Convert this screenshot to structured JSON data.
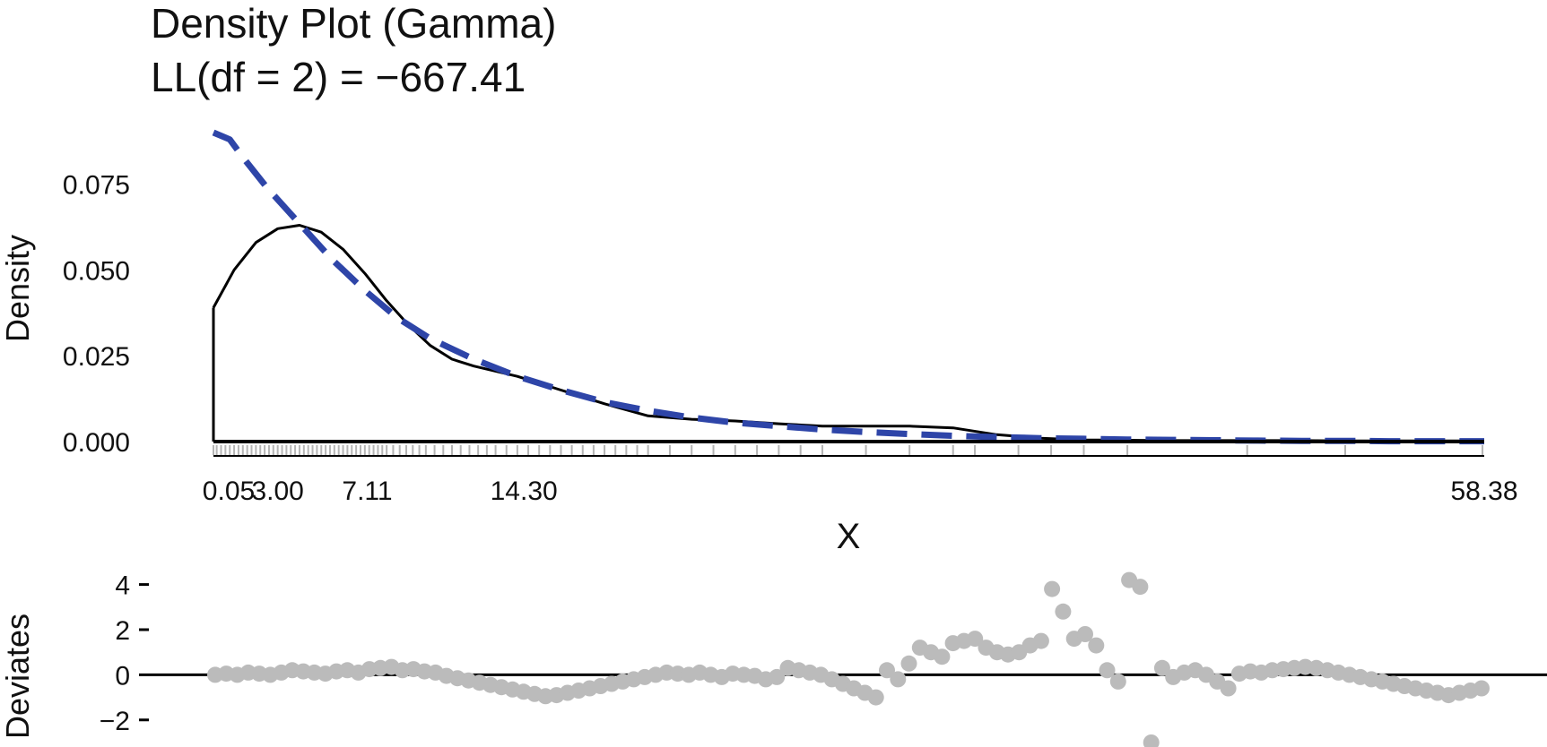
{
  "chart_data": [
    {
      "type": "line",
      "title": "Density Plot (Gamma)",
      "subtitle": "LL(df = 2) = −667.41",
      "xlabel": "X",
      "ylabel": "Density",
      "xlim": [
        0.05,
        58.38
      ],
      "ylim": [
        0,
        0.09
      ],
      "x_tick_labels": [
        "0.05",
        "3.00",
        "7.11",
        "14.30",
        "58.38"
      ],
      "y_tick_labels": [
        "0.000",
        "0.025",
        "0.050",
        "0.075"
      ],
      "grid": false,
      "series": [
        {
          "style": "solid",
          "color": "#000000",
          "x": [
            0.05,
            1,
            2,
            3,
            4,
            5,
            6,
            7,
            8,
            9,
            10,
            11,
            12,
            14,
            16,
            18,
            20,
            22,
            24,
            26,
            28,
            30,
            32,
            34,
            36,
            38,
            40,
            42,
            44,
            46,
            48,
            50,
            52,
            54,
            56,
            58.38
          ],
          "y": [
            0.039,
            0.05,
            0.058,
            0.062,
            0.063,
            0.061,
            0.056,
            0.049,
            0.041,
            0.034,
            0.028,
            0.024,
            0.022,
            0.019,
            0.015,
            0.011,
            0.0075,
            0.0065,
            0.006,
            0.0052,
            0.0045,
            0.0045,
            0.0045,
            0.004,
            0.002,
            0.001,
            0.0005,
            0.0004,
            0.0003,
            0.0003,
            0.0003,
            0.0003,
            0.0002,
            0.0002,
            0.0002,
            0.0002
          ]
        },
        {
          "style": "dashed",
          "color": "#2e45a8",
          "x": [
            0.05,
            0.8,
            1.5,
            2.5,
            3.5,
            4.5,
            5.5,
            7,
            8.5,
            10,
            12,
            14,
            16,
            18,
            20,
            22,
            24,
            26,
            28,
            30,
            32,
            34,
            36,
            38,
            40,
            42,
            44,
            46,
            48,
            50,
            52,
            54,
            56,
            58.38
          ],
          "y": [
            0.09,
            0.088,
            0.082,
            0.074,
            0.067,
            0.06,
            0.053,
            0.044,
            0.036,
            0.03,
            0.024,
            0.019,
            0.015,
            0.0115,
            0.009,
            0.007,
            0.0055,
            0.0045,
            0.0035,
            0.0028,
            0.0022,
            0.0017,
            0.0013,
            0.001,
            0.0008,
            0.0006,
            0.0005,
            0.0004,
            0.0003,
            0.0002,
            0.0002,
            0.0001,
            0.0001,
            0.0001
          ]
        }
      ],
      "rug": [
        0.05,
        0.2,
        0.4,
        0.6,
        0.8,
        1.0,
        1.2,
        1.4,
        1.6,
        1.8,
        2.0,
        2.2,
        2.4,
        2.6,
        2.8,
        3.0,
        3.2,
        3.4,
        3.6,
        3.8,
        4.0,
        4.2,
        4.4,
        4.6,
        4.8,
        5.0,
        5.2,
        5.4,
        5.6,
        5.8,
        6.0,
        6.2,
        6.4,
        6.6,
        6.8,
        7.0,
        7.2,
        7.4,
        7.6,
        7.8,
        8.0,
        8.3,
        8.6,
        8.9,
        9.2,
        9.5,
        9.8,
        10.2,
        10.6,
        11.0,
        11.4,
        11.8,
        12.2,
        12.6,
        13.0,
        13.5,
        14.0,
        14.5,
        15.0,
        15.5,
        16.0,
        16.5,
        17.0,
        17.5,
        18.0,
        18.5,
        19.0,
        19.5,
        20.0,
        21.0,
        22.0,
        23.0,
        24.0,
        25.0,
        26.0,
        27.0,
        28.0,
        30.0,
        32.0,
        34.0,
        35.0,
        37.0,
        38.5,
        40.0,
        42.0,
        47.5,
        52.0,
        58.3
      ]
    },
    {
      "type": "scatter",
      "xlabel": "",
      "ylabel": "Deviates",
      "ylim": [
        -3.2,
        4.5
      ],
      "y_tick_labels": [
        "4",
        "2",
        "0",
        "−2"
      ],
      "reference_line": 0,
      "point_color": "#bbbbbb",
      "x": [
        0,
        1,
        2,
        3,
        4,
        5,
        6,
        7,
        8,
        9,
        10,
        11,
        12,
        13,
        14,
        15,
        16,
        17,
        18,
        19,
        20,
        21,
        22,
        23,
        24,
        25,
        26,
        27,
        28,
        29,
        30,
        31,
        32,
        33,
        34,
        35,
        36,
        37,
        38,
        39,
        40,
        41,
        42,
        43,
        44,
        45,
        46,
        47,
        48,
        49,
        50,
        51,
        52,
        53,
        54,
        55,
        56,
        57,
        58,
        59,
        60,
        61,
        62,
        63,
        64,
        65,
        66,
        67,
        68,
        69,
        70,
        71,
        72,
        73,
        74,
        75,
        76,
        77,
        78,
        79,
        80,
        81,
        82,
        83,
        84,
        85,
        86,
        87,
        88,
        89,
        90,
        91,
        92,
        93,
        94,
        95,
        96,
        97,
        98,
        99,
        100,
        101,
        102,
        103,
        104,
        105,
        106,
        107,
        108,
        109,
        110,
        111,
        112,
        113,
        114,
        115
      ],
      "y": [
        0.0,
        0.05,
        0.0,
        0.1,
        0.05,
        0.0,
        0.1,
        0.2,
        0.15,
        0.1,
        0.05,
        0.15,
        0.2,
        0.1,
        0.25,
        0.3,
        0.35,
        0.2,
        0.25,
        0.15,
        0.1,
        -0.05,
        -0.15,
        -0.25,
        -0.35,
        -0.45,
        -0.55,
        -0.65,
        -0.75,
        -0.85,
        -0.95,
        -0.9,
        -0.8,
        -0.7,
        -0.6,
        -0.5,
        -0.4,
        -0.3,
        -0.2,
        -0.1,
        0.0,
        0.1,
        0.05,
        0.0,
        0.1,
        0.0,
        -0.1,
        0.05,
        0.0,
        -0.05,
        -0.2,
        -0.1,
        0.3,
        0.2,
        0.1,
        0.0,
        -0.2,
        -0.4,
        -0.6,
        -0.8,
        -1.0,
        0.2,
        -0.2,
        0.5,
        1.2,
        1.0,
        0.8,
        1.4,
        1.5,
        1.6,
        1.2,
        1.0,
        0.9,
        1.0,
        1.3,
        1.5,
        3.8,
        2.8,
        1.6,
        1.8,
        1.3,
        0.2,
        -0.3,
        4.2,
        3.9,
        -3.0,
        0.3,
        -0.1,
        0.1,
        0.2,
        0.0,
        -0.3,
        -0.6,
        0.05,
        0.15,
        0.1,
        0.2,
        0.25,
        0.3,
        0.35,
        0.3,
        0.2,
        0.1,
        0.0,
        -0.1,
        -0.2,
        -0.3,
        -0.4,
        -0.5,
        -0.6,
        -0.7,
        -0.8,
        -0.9,
        -0.8,
        -0.7,
        -0.6
      ]
    }
  ]
}
